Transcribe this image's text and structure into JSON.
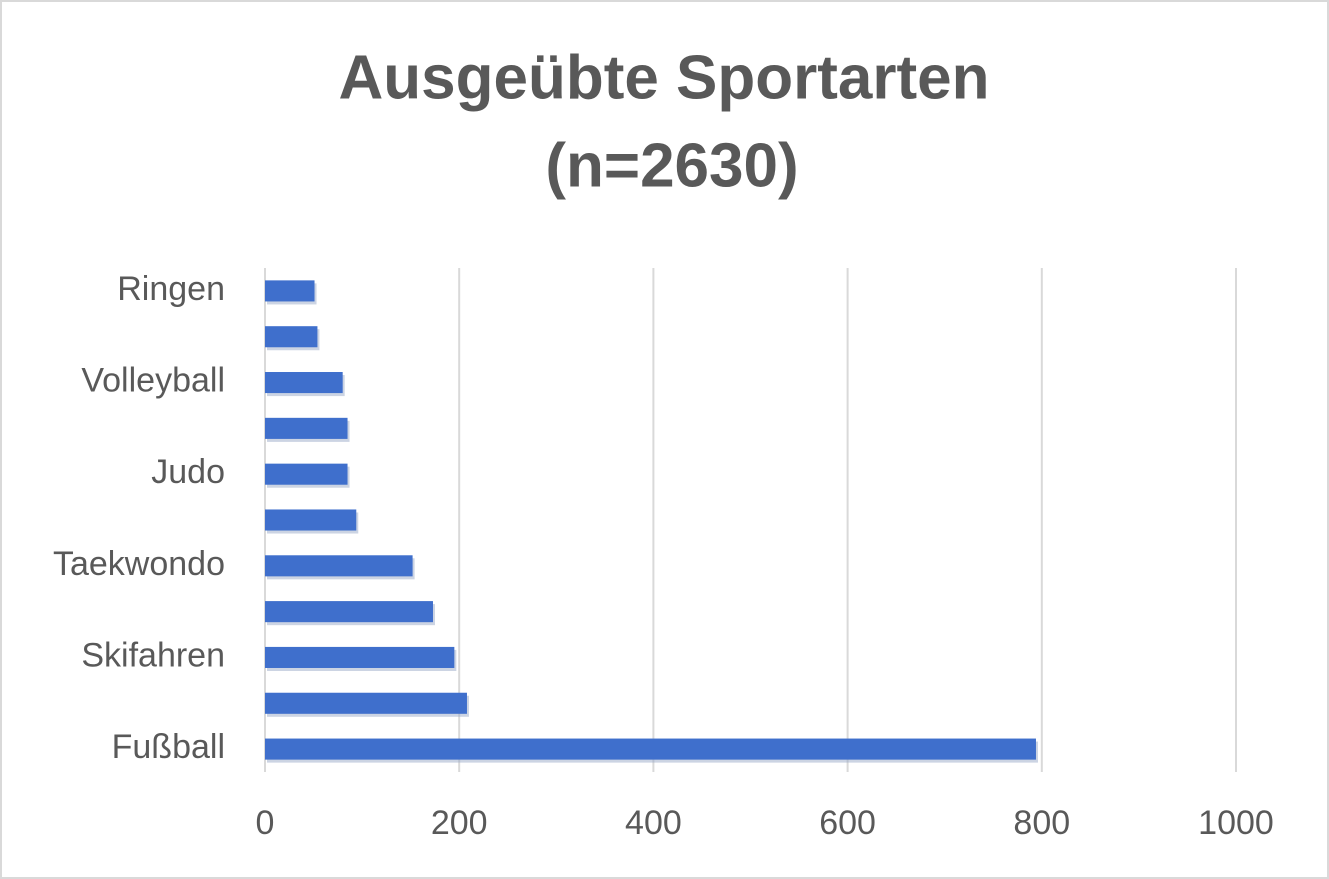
{
  "chart_data": {
    "type": "bar",
    "orientation": "horizontal",
    "title": [
      "Ausgeübte Sportarten",
      "(n=2630)"
    ],
    "categories": [
      "Fußball",
      null,
      "Skifahren",
      null,
      "Taekwondo",
      null,
      "Judo",
      null,
      "Volleyball",
      null,
      "Ringen"
    ],
    "values": [
      794,
      208,
      195,
      173,
      152,
      94,
      85,
      85,
      80,
      54,
      51
    ],
    "color": "#3f6fcc",
    "xlim": [
      0,
      1000
    ],
    "xticks": [
      0,
      200,
      400,
      600,
      800,
      1000
    ],
    "grid": true
  }
}
